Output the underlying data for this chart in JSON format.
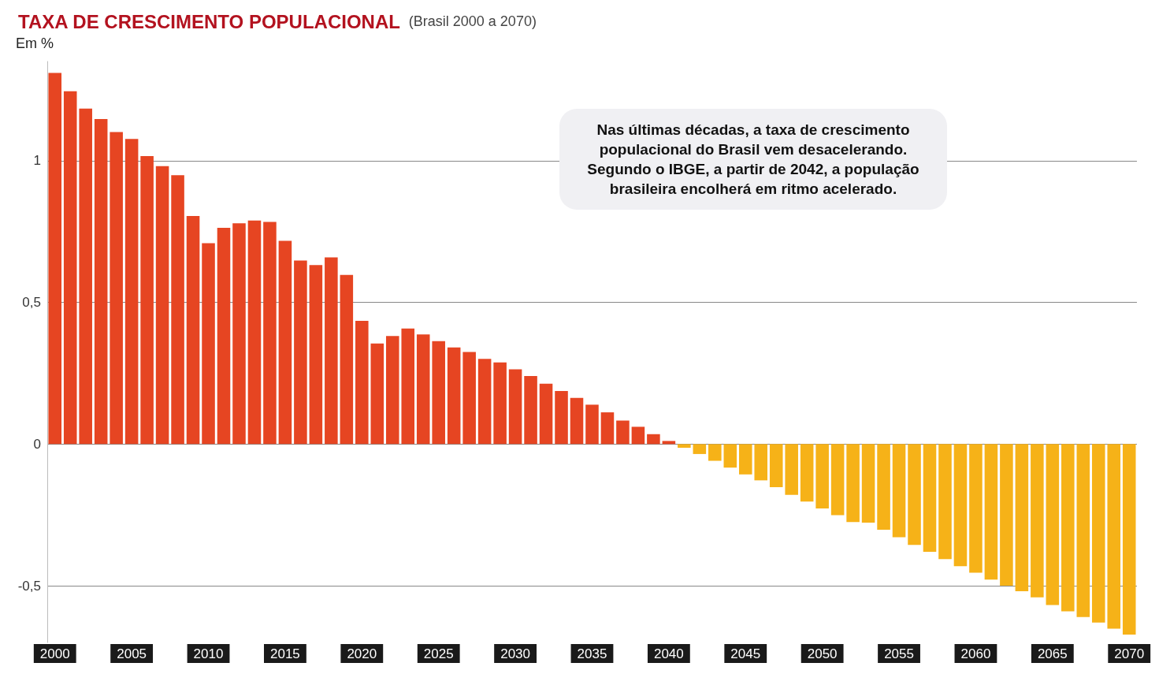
{
  "chart_data": {
    "type": "bar",
    "title": "TAXA DE CRESCIMENTO POPULACIONAL",
    "subtitle": "(Brasil 2000 a 2070)",
    "ylabel": "Em %",
    "categories": [
      "2000",
      null,
      null,
      null,
      null,
      "2005",
      null,
      null,
      null,
      null,
      "2010",
      null,
      null,
      null,
      null,
      "2015",
      null,
      null,
      null,
      null,
      "2020",
      null,
      null,
      null,
      null,
      "2025",
      null,
      null,
      null,
      null,
      "2030",
      null,
      null,
      null,
      null,
      "2035",
      null,
      null,
      null,
      null,
      "2040",
      null,
      null,
      null,
      null,
      "2045",
      null,
      null,
      null,
      null,
      "2050",
      null,
      null,
      null,
      null,
      "2055",
      null,
      null,
      null,
      null,
      "2060",
      null,
      null,
      null,
      null,
      "2065",
      null,
      null,
      null,
      null,
      "2070"
    ],
    "values": [
      1.31,
      1.245,
      1.184,
      1.147,
      1.101,
      1.077,
      1.016,
      0.981,
      0.949,
      0.805,
      0.709,
      0.763,
      0.779,
      0.789,
      0.784,
      0.717,
      0.648,
      0.632,
      0.659,
      0.597,
      0.435,
      0.355,
      0.381,
      0.408,
      0.387,
      0.363,
      0.341,
      0.325,
      0.301,
      0.288,
      0.264,
      0.24,
      0.213,
      0.187,
      0.163,
      0.139,
      0.112,
      0.083,
      0.061,
      0.035,
      0.011,
      -0.013,
      -0.035,
      -0.059,
      -0.083,
      -0.107,
      -0.128,
      -0.152,
      -0.179,
      -0.203,
      -0.227,
      -0.251,
      -0.275,
      -0.277,
      -0.302,
      -0.329,
      -0.356,
      -0.38,
      -0.406,
      -0.431,
      -0.454,
      -0.478,
      -0.5,
      -0.519,
      -0.541,
      -0.568,
      -0.59,
      -0.61,
      -0.63,
      -0.651,
      -0.672
    ],
    "colors": [
      "#e64522",
      "#e64522",
      "#e64522",
      "#e64522",
      "#e64522",
      "#e64522",
      "#e64522",
      "#e64522",
      "#e64522",
      "#e64522",
      "#e64522",
      "#e64522",
      "#e64522",
      "#e64522",
      "#e64522",
      "#e64522",
      "#e64522",
      "#e64522",
      "#e64522",
      "#e64522",
      "#e64522",
      "#e64522",
      "#e64522",
      "#e64522",
      "#e64522",
      "#e64522",
      "#e64522",
      "#e64522",
      "#e64522",
      "#e64522",
      "#e64522",
      "#e64522",
      "#e64522",
      "#e64522",
      "#e64522",
      "#e64522",
      "#e64522",
      "#e64522",
      "#e64522",
      "#e64522",
      "#e64522",
      "#f6b218",
      "#f6b218",
      "#f6b218",
      "#f6b218",
      "#f6b218",
      "#f6b218",
      "#f6b218",
      "#f6b218",
      "#f6b218",
      "#f6b218",
      "#f6b218",
      "#f6b218",
      "#f6b218",
      "#f6b218",
      "#f6b218",
      "#f6b218",
      "#f6b218",
      "#f6b218",
      "#f6b218",
      "#f6b218",
      "#f6b218",
      "#f6b218",
      "#f6b218",
      "#f6b218",
      "#f6b218",
      "#f6b218",
      "#f6b218",
      "#f6b218",
      "#f6b218",
      "#f6b218"
    ],
    "ylim": [
      -0.7,
      1.35
    ],
    "yticks": [
      {
        "value": -0.5,
        "label": "-0,5"
      },
      0,
      {
        "value": 0.5,
        "label": "0,5"
      },
      1
    ],
    "grid": "y",
    "annotations": [
      "Nas últimas décadas, a taxa de crescimento populacional do Brasil vem desacelerando. Segundo o IBGE, a partir de 2042, a população brasileira encolherá em ritmo acelerado."
    ]
  }
}
